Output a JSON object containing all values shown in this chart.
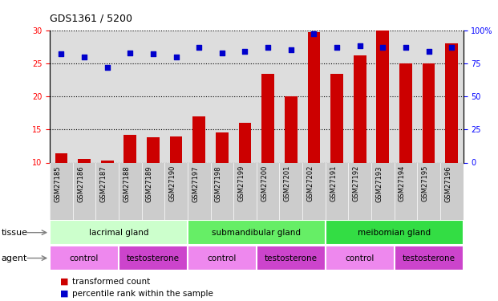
{
  "title": "GDS1361 / 5200",
  "samples": [
    "GSM27185",
    "GSM27186",
    "GSM27187",
    "GSM27188",
    "GSM27189",
    "GSM27190",
    "GSM27197",
    "GSM27198",
    "GSM27199",
    "GSM27200",
    "GSM27201",
    "GSM27202",
    "GSM27191",
    "GSM27192",
    "GSM27193",
    "GSM27194",
    "GSM27195",
    "GSM27196"
  ],
  "bar_values": [
    11.4,
    10.5,
    10.3,
    14.2,
    13.8,
    14.0,
    17.0,
    14.6,
    16.0,
    23.4,
    20.0,
    29.7,
    23.4,
    26.2,
    30.0,
    25.0,
    25.0,
    28.0
  ],
  "dot_values": [
    82,
    80,
    72,
    83,
    82,
    80,
    87,
    83,
    84,
    87,
    85,
    97,
    87,
    88,
    87,
    87,
    84,
    87
  ],
  "bar_color": "#cc0000",
  "dot_color": "#0000cc",
  "ylim_left": [
    10,
    30
  ],
  "ylim_right": [
    0,
    100
  ],
  "yticks_left": [
    10,
    15,
    20,
    25,
    30
  ],
  "yticks_right": [
    0,
    25,
    50,
    75,
    100
  ],
  "ytick_labels_right": [
    "0",
    "25",
    "50",
    "75",
    "100%"
  ],
  "tissue_groups": [
    {
      "label": "lacrimal gland",
      "start": 0,
      "end": 6,
      "color": "#ccffcc"
    },
    {
      "label": "submandibular gland",
      "start": 6,
      "end": 12,
      "color": "#66ee66"
    },
    {
      "label": "meibomian gland",
      "start": 12,
      "end": 18,
      "color": "#33dd44"
    }
  ],
  "agent_groups": [
    {
      "label": "control",
      "start": 0,
      "end": 3,
      "color": "#ee88ee"
    },
    {
      "label": "testosterone",
      "start": 3,
      "end": 6,
      "color": "#cc44cc"
    },
    {
      "label": "control",
      "start": 6,
      "end": 9,
      "color": "#ee88ee"
    },
    {
      "label": "testosterone",
      "start": 9,
      "end": 12,
      "color": "#cc44cc"
    },
    {
      "label": "control",
      "start": 12,
      "end": 15,
      "color": "#ee88ee"
    },
    {
      "label": "testosterone",
      "start": 15,
      "end": 18,
      "color": "#cc44cc"
    }
  ],
  "legend_red": "transformed count",
  "legend_blue": "percentile rank within the sample",
  "tissue_label": "tissue",
  "agent_label": "agent",
  "plot_bg_color": "#dddddd"
}
